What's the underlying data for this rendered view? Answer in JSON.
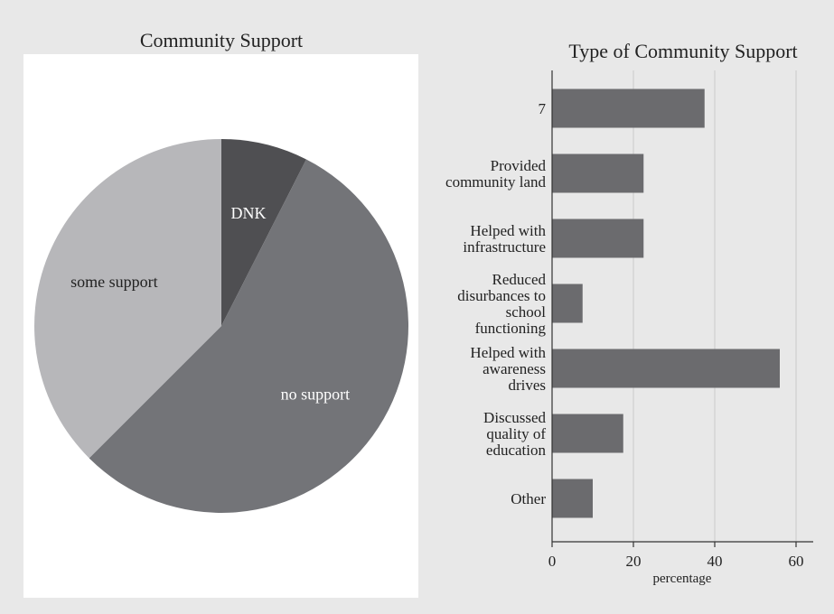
{
  "chart_data": [
    {
      "type": "pie",
      "title": "Community Support",
      "slices": [
        {
          "label": "DNK",
          "value": 7.5,
          "color": "#4f4f52"
        },
        {
          "label": "no support",
          "value": 55,
          "color": "#737478"
        },
        {
          "label": "some support",
          "value": 37.5,
          "color": "#b7b7ba"
        }
      ]
    },
    {
      "type": "bar",
      "orientation": "horizontal",
      "title": "Type of Community Support",
      "categories": [
        "7",
        "Provided community land",
        "Helped with infrastructure",
        "Reduced disurbances to school functioning",
        "Helped with awareness drives",
        "Discussed quality of education",
        "Other"
      ],
      "category_lines": [
        [
          "7"
        ],
        [
          "Provided",
          "community land"
        ],
        [
          "Helped with",
          "infrastructure"
        ],
        [
          "Reduced",
          "disurbances to",
          "school",
          "functioning"
        ],
        [
          "Helped with",
          "awareness",
          "drives"
        ],
        [
          "Discussed",
          "quality of",
          "education"
        ],
        [
          "Other"
        ]
      ],
      "values": [
        37.5,
        22.5,
        22.5,
        7.5,
        56,
        17.5,
        10
      ],
      "xlabel": "percentage",
      "xlim": [
        0,
        64
      ],
      "xticks": [
        0,
        20,
        40,
        60
      ],
      "grid": true,
      "bar_color": "#6b6b6e"
    }
  ]
}
